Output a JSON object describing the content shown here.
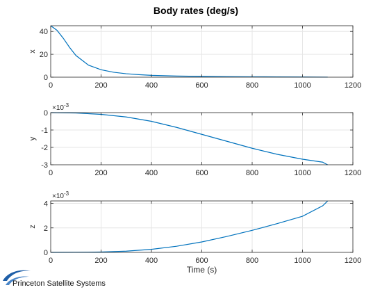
{
  "title": "Body rates (deg/s)",
  "colors": {
    "series": "#0072bd",
    "logo": "#1f5fa8"
  },
  "logo": {
    "name": "Princeton Satellite Systems",
    "icon": "swoosh-logo-icon"
  },
  "chart_data": [
    {
      "type": "line",
      "ylabel": "x",
      "xlabel": "",
      "xlim": [
        0,
        1200
      ],
      "ylim": [
        0,
        45
      ],
      "xticks": [
        0,
        200,
        400,
        600,
        800,
        1000,
        1200
      ],
      "yticks": [
        0,
        20,
        40
      ],
      "ytick_labels": [
        "0",
        "20",
        "40"
      ],
      "exponent": "",
      "grid": true,
      "series": [
        {
          "x": [
            0,
            25,
            50,
            75,
            100,
            150,
            200,
            250,
            300,
            350,
            400,
            500,
            600,
            700,
            800,
            900,
            1000,
            1100
          ],
          "y": [
            45,
            41,
            34,
            26,
            19,
            10.5,
            6.5,
            4.3,
            3.0,
            2.2,
            1.6,
            1.0,
            0.7,
            0.5,
            0.35,
            0.25,
            0.15,
            0.05
          ]
        }
      ]
    },
    {
      "type": "line",
      "ylabel": "y",
      "xlabel": "",
      "xlim": [
        0,
        1200
      ],
      "ylim": [
        -3,
        0
      ],
      "xticks": [
        0,
        200,
        400,
        600,
        800,
        1000,
        1200
      ],
      "yticks": [
        -3,
        -2,
        -1,
        0
      ],
      "ytick_labels": [
        "-3",
        "-2",
        "-1",
        "0"
      ],
      "exponent": "-3",
      "grid": true,
      "series": [
        {
          "x": [
            0,
            100,
            200,
            300,
            400,
            500,
            600,
            700,
            800,
            900,
            1000,
            1080,
            1090,
            1100
          ],
          "y": [
            0,
            -0.02,
            -0.1,
            -0.25,
            -0.5,
            -0.85,
            -1.25,
            -1.65,
            -2.05,
            -2.4,
            -2.68,
            -2.85,
            -2.93,
            -3.0
          ]
        }
      ]
    },
    {
      "type": "line",
      "ylabel": "z",
      "xlabel": "Time (s)",
      "xlim": [
        0,
        1200
      ],
      "ylim": [
        0,
        4.2
      ],
      "xticks": [
        0,
        200,
        400,
        600,
        800,
        1000,
        1200
      ],
      "yticks": [
        0,
        2,
        4
      ],
      "ytick_labels": [
        "0",
        "2",
        "4"
      ],
      "exponent": "-3",
      "grid": true,
      "series": [
        {
          "x": [
            0,
            100,
            200,
            300,
            400,
            500,
            600,
            700,
            800,
            900,
            1000,
            1080,
            1090,
            1100
          ],
          "y": [
            0,
            0.005,
            0.03,
            0.1,
            0.25,
            0.5,
            0.85,
            1.3,
            1.8,
            2.35,
            2.95,
            3.8,
            4.0,
            4.2
          ]
        }
      ]
    }
  ]
}
